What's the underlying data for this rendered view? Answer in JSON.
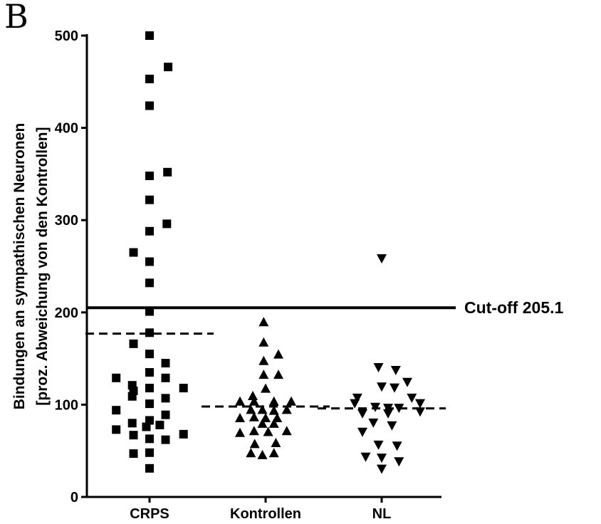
{
  "panel_label": "B",
  "chart_data": {
    "type": "scatter",
    "ylabel_line1": "Bindungen an sympathischen Neuronen",
    "ylabel_line2": "[proz. Abweichung von den Kontrollen]",
    "ylim": [
      0,
      500
    ],
    "yticks": [
      0,
      100,
      200,
      300,
      400,
      500
    ],
    "categories": [
      "CRPS",
      "Kontrollen",
      "NL"
    ],
    "cutoff": {
      "value": 205.1,
      "label": "Cut-off 205.1"
    },
    "series": [
      {
        "category": "CRPS",
        "marker": "square",
        "median": 177,
        "values": [
          {
            "x": 0.0,
            "y": 500
          },
          {
            "x": 0.0,
            "y": 453
          },
          {
            "x": 0.29,
            "y": 466
          },
          {
            "x": 0.0,
            "y": 424
          },
          {
            "x": 0.0,
            "y": 348
          },
          {
            "x": 0.28,
            "y": 352
          },
          {
            "x": 0.0,
            "y": 322
          },
          {
            "x": 0.0,
            "y": 288
          },
          {
            "x": 0.27,
            "y": 296
          },
          {
            "x": -0.25,
            "y": 265
          },
          {
            "x": 0.0,
            "y": 255
          },
          {
            "x": 0.0,
            "y": 232
          },
          {
            "x": 0.0,
            "y": 201
          },
          {
            "x": 0.0,
            "y": 178
          },
          {
            "x": -0.25,
            "y": 166
          },
          {
            "x": 0.0,
            "y": 155
          },
          {
            "x": 0.25,
            "y": 145
          },
          {
            "x": 0.0,
            "y": 135
          },
          {
            "x": -0.52,
            "y": 129
          },
          {
            "x": 0.25,
            "y": 129
          },
          {
            "x": -0.27,
            "y": 121
          },
          {
            "x": -0.25,
            "y": 115
          },
          {
            "x": 0.0,
            "y": 118
          },
          {
            "x": 0.53,
            "y": 118
          },
          {
            "x": -0.27,
            "y": 109
          },
          {
            "x": 0.0,
            "y": 101
          },
          {
            "x": 0.25,
            "y": 107
          },
          {
            "x": -0.52,
            "y": 94
          },
          {
            "x": 0.25,
            "y": 89
          },
          {
            "x": -0.27,
            "y": 80
          },
          {
            "x": 0.0,
            "y": 83
          },
          {
            "x": 0.16,
            "y": 78
          },
          {
            "x": -0.52,
            "y": 73
          },
          {
            "x": -0.05,
            "y": 76
          },
          {
            "x": -0.25,
            "y": 67
          },
          {
            "x": 0.0,
            "y": 63
          },
          {
            "x": 0.25,
            "y": 62
          },
          {
            "x": 0.53,
            "y": 68
          },
          {
            "x": -0.25,
            "y": 47
          },
          {
            "x": 0.0,
            "y": 48
          },
          {
            "x": 0.0,
            "y": 31
          }
        ]
      },
      {
        "category": "Kontrollen",
        "marker": "triangle-up",
        "median": 98,
        "values": [
          {
            "x": -0.03,
            "y": 190
          },
          {
            "x": -0.03,
            "y": 168
          },
          {
            "x": -0.03,
            "y": 148
          },
          {
            "x": 0.2,
            "y": 155
          },
          {
            "x": -0.03,
            "y": 133
          },
          {
            "x": 0.2,
            "y": 133
          },
          {
            "x": 0.0,
            "y": 118
          },
          {
            "x": -0.4,
            "y": 104
          },
          {
            "x": -0.2,
            "y": 110
          },
          {
            "x": -0.18,
            "y": 104
          },
          {
            "x": 0.13,
            "y": 104
          },
          {
            "x": 0.4,
            "y": 104
          },
          {
            "x": -0.23,
            "y": 95
          },
          {
            "x": -0.05,
            "y": 95
          },
          {
            "x": 0.13,
            "y": 94
          },
          {
            "x": 0.33,
            "y": 95
          },
          {
            "x": -0.4,
            "y": 86
          },
          {
            "x": -0.18,
            "y": 87
          },
          {
            "x": 0.0,
            "y": 86
          },
          {
            "x": 0.18,
            "y": 86
          },
          {
            "x": -0.05,
            "y": 80
          },
          {
            "x": 0.13,
            "y": 80
          },
          {
            "x": -0.4,
            "y": 70
          },
          {
            "x": -0.18,
            "y": 72
          },
          {
            "x": 0.04,
            "y": 71
          },
          {
            "x": 0.33,
            "y": 72
          },
          {
            "x": -0.17,
            "y": 58
          },
          {
            "x": 0.16,
            "y": 59
          },
          {
            "x": -0.23,
            "y": 48
          },
          {
            "x": -0.05,
            "y": 46
          },
          {
            "x": 0.13,
            "y": 48
          }
        ]
      },
      {
        "category": "NL",
        "marker": "triangle-down",
        "median": 96,
        "values": [
          {
            "x": 0.0,
            "y": 258
          },
          {
            "x": -0.05,
            "y": 140
          },
          {
            "x": 0.22,
            "y": 137
          },
          {
            "x": 0.4,
            "y": 124
          },
          {
            "x": 0.0,
            "y": 119
          },
          {
            "x": 0.2,
            "y": 118
          },
          {
            "x": -0.38,
            "y": 107
          },
          {
            "x": 0.47,
            "y": 107
          },
          {
            "x": -0.42,
            "y": 101
          },
          {
            "x": 0.6,
            "y": 101
          },
          {
            "x": 0.1,
            "y": 96
          },
          {
            "x": -0.1,
            "y": 97
          },
          {
            "x": 0.27,
            "y": 96
          },
          {
            "x": -0.3,
            "y": 90
          },
          {
            "x": 0.6,
            "y": 92
          },
          {
            "x": 0.1,
            "y": 90
          },
          {
            "x": -0.13,
            "y": 80
          },
          {
            "x": 0.16,
            "y": 77
          },
          {
            "x": -0.3,
            "y": 70
          },
          {
            "x": -0.05,
            "y": 56
          },
          {
            "x": 0.24,
            "y": 55
          },
          {
            "x": 0.0,
            "y": 42
          },
          {
            "x": -0.25,
            "y": 43
          },
          {
            "x": 0.27,
            "y": 38
          },
          {
            "x": 0.0,
            "y": 30
          }
        ]
      }
    ]
  }
}
